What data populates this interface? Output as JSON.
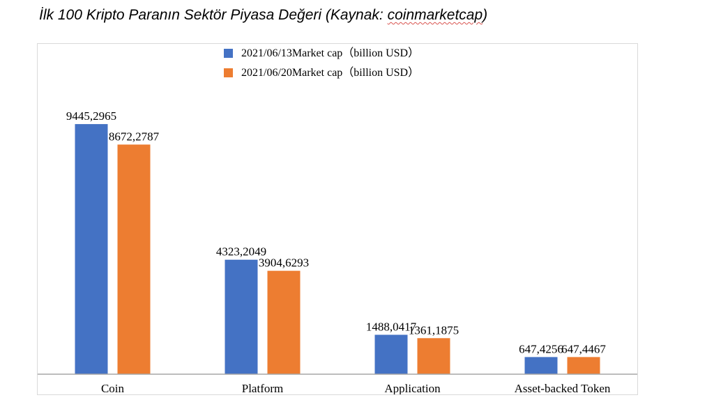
{
  "page": {
    "title_prefix": "İlk 100 Kripto Paranın Sektör Piyasa Değeri (Kaynak: ",
    "title_source": "coinmarketcap",
    "title_suffix": ")"
  },
  "chart_data": {
    "type": "bar",
    "title": "",
    "xlabel": "",
    "ylabel": "",
    "categories": [
      "Coin",
      "Platform",
      "Application",
      "Asset-backed Token"
    ],
    "series": [
      {
        "name": "2021/06/13Market cap（billion USD）",
        "color": "#4472c4",
        "values": [
          9445.2965,
          4323.2049,
          1488.0417,
          647.4256
        ],
        "labels": [
          "9445,2965",
          "4323,2049",
          "1488,0417",
          "647,4256"
        ]
      },
      {
        "name": "2021/06/20Market cap（billion USD）",
        "color": "#ed7d31",
        "values": [
          8672.2787,
          3904.6293,
          1361.1875,
          647.4467
        ],
        "labels": [
          "8672,2787",
          "3904,6293",
          "1361,1875",
          "647,4467"
        ]
      }
    ],
    "ylim": [
      0,
      10000
    ],
    "grid": false,
    "legend": "top-center",
    "axis_color": "#a6a6a6"
  }
}
